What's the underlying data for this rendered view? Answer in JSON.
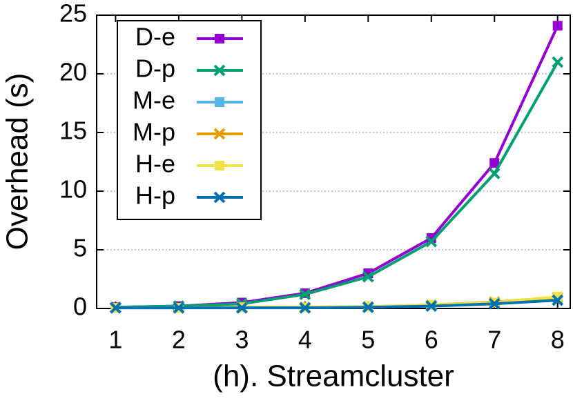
{
  "chart_data": {
    "type": "line",
    "x_label": "(h). Streamcluster",
    "y_label": "Overhead (s)",
    "x": [
      1,
      2,
      3,
      4,
      5,
      6,
      7,
      8
    ],
    "xlim": [
      0.7,
      8.2
    ],
    "xticks": [
      1,
      2,
      3,
      4,
      5,
      6,
      7,
      8
    ],
    "ylim": [
      0,
      25
    ],
    "yticks": [
      0,
      5,
      10,
      15,
      20,
      25
    ],
    "grid": true,
    "legend": "upper left",
    "series": [
      {
        "name": "D-e",
        "color": "#9400d3",
        "marker": "square",
        "values": [
          0.1,
          0.2,
          0.5,
          1.3,
          3.0,
          6.0,
          12.4,
          24.1
        ]
      },
      {
        "name": "D-p",
        "color": "#009e73",
        "marker": "x",
        "values": [
          0.1,
          0.2,
          0.4,
          1.2,
          2.7,
          5.7,
          11.5,
          21.0
        ]
      },
      {
        "name": "M-e",
        "color": "#56b4e9",
        "marker": "square",
        "values": [
          0.05,
          0.05,
          0.1,
          0.1,
          0.15,
          0.3,
          0.5,
          0.9
        ]
      },
      {
        "name": "M-p",
        "color": "#e69f00",
        "marker": "x",
        "values": [
          0.05,
          0.05,
          0.1,
          0.1,
          0.15,
          0.3,
          0.55,
          0.95
        ]
      },
      {
        "name": "H-e",
        "color": "#f0e442",
        "marker": "square",
        "values": [
          0.05,
          0.05,
          0.1,
          0.1,
          0.15,
          0.3,
          0.5,
          1.0
        ]
      },
      {
        "name": "H-p",
        "color": "#0072b2",
        "marker": "x",
        "values": [
          0.05,
          0.05,
          0.05,
          0.05,
          0.1,
          0.2,
          0.4,
          0.7
        ]
      }
    ]
  }
}
